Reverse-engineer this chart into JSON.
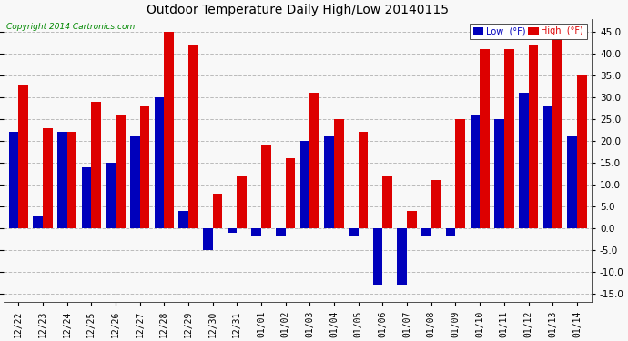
{
  "title": "Outdoor Temperature Daily High/Low 20140115",
  "copyright": "Copyright 2014 Cartronics.com",
  "legend_low": "Low  (°F)",
  "legend_high": "High  (°F)",
  "low_color": "#0000bb",
  "high_color": "#dd0000",
  "dates": [
    "12/22",
    "12/23",
    "12/24",
    "12/25",
    "12/26",
    "12/27",
    "12/28",
    "12/29",
    "12/30",
    "12/31",
    "01/01",
    "01/02",
    "01/03",
    "01/04",
    "01/05",
    "01/06",
    "01/07",
    "01/08",
    "01/09",
    "01/10",
    "01/11",
    "01/12",
    "01/13",
    "01/14"
  ],
  "high_values": [
    33,
    23,
    22,
    29,
    26,
    28,
    45,
    42,
    8,
    12,
    19,
    16,
    31,
    25,
    22,
    12,
    4,
    11,
    25,
    41,
    41,
    42,
    46,
    35
  ],
  "low_values": [
    22,
    3,
    22,
    14,
    15,
    21,
    30,
    4,
    -5,
    -1,
    -2,
    -2,
    20,
    21,
    -2,
    -13,
    -13,
    -2,
    -2,
    26,
    25,
    31,
    28,
    21
  ],
  "ylim": [
    -17,
    48
  ],
  "yticks": [
    -15.0,
    -10.0,
    -5.0,
    0.0,
    5.0,
    10.0,
    15.0,
    20.0,
    25.0,
    30.0,
    35.0,
    40.0,
    45.0
  ],
  "bg_color": "#f8f8f8",
  "grid_color": "#bbbbbb",
  "bar_width": 0.4,
  "figsize": [
    6.9,
    3.75
  ],
  "dpi": 100
}
